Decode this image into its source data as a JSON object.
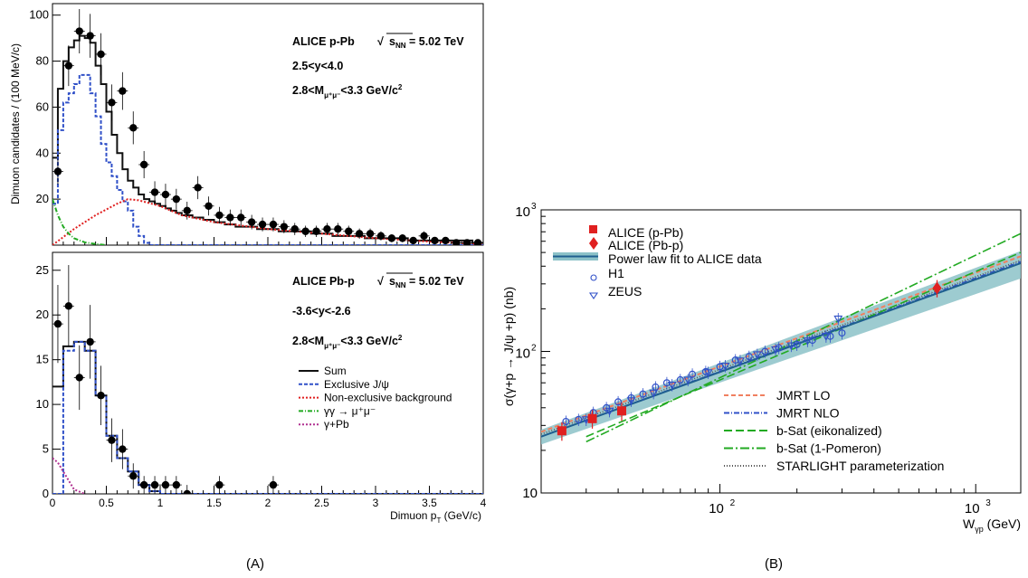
{
  "captions": {
    "a": "(A)",
    "b": "(B)"
  },
  "colors": {
    "sum": "#111111",
    "excl": "#3050c8",
    "nonexcl": "#e02020",
    "gg": "#22aa22",
    "gpb": "#b03090",
    "alice": "#e02020",
    "h1": "#3050c8",
    "band": "#8cc2c8",
    "fit": "#1f5f8f",
    "lo": "#f08060",
    "nlo": "#3050c8",
    "bsat_e": "#22aa22",
    "bsat_1": "#22aa22",
    "starlight": "#555555"
  },
  "chart_data": [
    {
      "id": "A-top",
      "type": "line",
      "annotations": [
        "ALICE p-Pb",
        "s",
        "NN",
        " = 5.02 TeV",
        "2.5<y<4.0",
        "2.8<M",
        "μ⁺μ⁻",
        "<3.3 GeV/c",
        "2"
      ],
      "ylabel": "Dimuon candidates / (100 MeV/c)",
      "xlim": [
        0,
        4
      ],
      "ylim": [
        0,
        105
      ],
      "yticks": [
        "20",
        "40",
        "60",
        "80",
        "100"
      ],
      "bin_edges": [
        0,
        0.05,
        0.1,
        0.15,
        0.2,
        0.25,
        0.3,
        0.35,
        0.4,
        0.45,
        0.5,
        0.55,
        0.6,
        0.65,
        0.7,
        0.75,
        0.8,
        0.85,
        0.9,
        0.95,
        1.0,
        1.05,
        1.1,
        1.15,
        1.2,
        1.3,
        1.4,
        1.5,
        1.6,
        1.7,
        1.8,
        1.9,
        2.0,
        2.1,
        2.2,
        2.3,
        2.4,
        2.5,
        2.6,
        2.7,
        2.8,
        2.9,
        3.0,
        3.1,
        3.2,
        3.3,
        3.4,
        3.5,
        3.6,
        3.7,
        3.8,
        3.9,
        4.0
      ],
      "series": [
        {
          "name": "Sum",
          "style": "solid",
          "values": [
            38,
            68,
            80,
            86,
            89,
            91,
            90,
            88,
            78,
            70,
            58,
            48,
            40,
            33,
            28,
            25,
            22,
            20,
            19,
            18,
            17,
            16,
            15,
            14,
            13,
            12,
            11,
            10,
            9,
            8,
            8,
            7,
            7,
            6,
            6,
            6,
            5,
            5,
            4,
            4,
            4,
            3,
            3,
            3,
            3,
            2,
            2,
            2,
            2,
            2,
            2,
            1
          ]
        },
        {
          "name": "Exclusive J/ψ",
          "style": "dashed",
          "values": [
            18,
            50,
            62,
            66,
            70,
            74,
            74,
            66,
            56,
            44,
            36,
            30,
            24,
            19,
            15,
            8,
            4,
            1,
            0,
            0,
            0,
            0,
            0,
            0,
            0,
            0,
            0,
            0,
            0,
            0,
            0,
            0,
            0,
            0,
            0,
            0,
            0,
            0,
            0,
            0,
            0,
            0,
            0,
            0,
            0,
            0,
            0,
            0,
            0,
            0,
            0,
            0
          ]
        },
        {
          "name": "Non-exclusive background",
          "style": "dotted",
          "x": [
            0.0,
            0.2,
            0.4,
            0.6,
            0.7,
            0.8,
            1.0,
            1.2,
            1.5,
            2.0,
            2.5,
            3.0,
            3.5,
            4.0
          ],
          "values": [
            0,
            7,
            13,
            18,
            20,
            19.5,
            17,
            13,
            10,
            7,
            5,
            3,
            1.5,
            0.5
          ]
        },
        {
          "name": "γγ → μ⁺μ⁻",
          "style": "dashdot",
          "x": [
            0.0,
            0.05,
            0.1,
            0.15,
            0.2,
            0.3,
            0.4,
            0.5
          ],
          "values": [
            20,
            13,
            8,
            5,
            3,
            1.2,
            0.5,
            0
          ]
        }
      ],
      "points": {
        "x": [
          0.05,
          0.15,
          0.25,
          0.35,
          0.45,
          0.55,
          0.65,
          0.75,
          0.85,
          0.95,
          1.05,
          1.15,
          1.25,
          1.35,
          1.45,
          1.55,
          1.65,
          1.75,
          1.85,
          1.95,
          2.05,
          2.15,
          2.25,
          2.35,
          2.45,
          2.55,
          2.65,
          2.75,
          2.85,
          2.95,
          3.05,
          3.15,
          3.25,
          3.35,
          3.45,
          3.55,
          3.65,
          3.75,
          3.85,
          3.95
        ],
        "y": [
          32,
          78,
          93,
          91,
          83,
          62,
          67,
          51,
          35,
          23,
          22,
          20,
          15,
          25,
          17,
          13,
          12,
          12,
          10,
          9,
          9,
          8,
          7,
          6,
          6,
          7,
          7,
          6,
          5,
          5,
          4,
          3,
          3,
          2,
          4,
          2,
          2,
          1,
          1,
          1
        ]
      }
    },
    {
      "id": "A-bottom",
      "type": "line",
      "annotations": [
        "ALICE Pb-p",
        "s",
        "NN",
        " = 5.02 TeV",
        "-3.6<y<-2.6",
        "2.8<M",
        "μ⁺μ⁻",
        "<3.3 GeV/c",
        "2"
      ],
      "xlabel": "Dimuon p",
      "xlabel_sub": "T",
      "xlabel_unit": " (GeV/c)",
      "xlim": [
        0,
        4
      ],
      "ylim": [
        0,
        27
      ],
      "xticks": [
        "0",
        "0.5",
        "1",
        "1.5",
        "2",
        "2.5",
        "3",
        "3.5",
        "4"
      ],
      "yticks": [
        "0",
        "5",
        "10",
        "15",
        "20",
        "25"
      ],
      "legend": [
        "Sum",
        "Exclusive J/ψ",
        "Non-exclusive background",
        "γγ → μ⁺μ⁻",
        "γ+Pb"
      ],
      "bin_edges": [
        0,
        0.1,
        0.2,
        0.3,
        0.4,
        0.5,
        0.6,
        0.7,
        0.8,
        0.9,
        1.0,
        4.0
      ],
      "series": [
        {
          "name": "Sum",
          "style": "solid",
          "values": [
            12,
            16.5,
            17,
            16,
            11,
            6.5,
            4,
            2.5,
            1,
            0.3,
            0
          ]
        },
        {
          "name": "Exclusive J/ψ",
          "style": "dashed",
          "values": [
            0,
            16,
            17,
            16,
            11,
            6.5,
            4,
            2.5,
            1,
            0.3,
            0
          ]
        },
        {
          "name": "γ+Pb",
          "style": "dotted",
          "x": [
            0.0,
            0.05,
            0.1,
            0.15,
            0.2,
            0.3
          ],
          "values": [
            4,
            3.5,
            2.5,
            1.5,
            0.5,
            0
          ]
        }
      ],
      "points": {
        "x": [
          0.05,
          0.15,
          0.25,
          0.35,
          0.45,
          0.55,
          0.65,
          0.75,
          0.85,
          0.95,
          1.05,
          1.15,
          1.25,
          1.55,
          2.05
        ],
        "y": [
          19,
          21,
          13,
          17,
          11,
          6,
          5,
          2,
          1,
          1,
          1,
          1,
          0,
          1,
          1
        ]
      }
    },
    {
      "id": "B",
      "type": "scatter",
      "ylabel": "σ(γ+p → J/ψ +p) (nb)",
      "xlabel": "W",
      "xlabel_sub": "γp",
      "xlabel_unit": " (GeV)",
      "log_x": true,
      "log_y": true,
      "xlim": [
        20,
        1500
      ],
      "ylim": [
        10,
        1000
      ],
      "xticks": [
        {
          "v": 100,
          "base": "10",
          "exp": "2"
        },
        {
          "v": 1000,
          "base": "10",
          "exp": "3"
        }
      ],
      "yticks": [
        {
          "v": 10,
          "label": "10"
        },
        {
          "v": 100,
          "base": "10",
          "exp": "2"
        },
        {
          "v": 1000,
          "base": "10",
          "exp": "3"
        }
      ],
      "legend_top": [
        "ALICE (p-Pb)",
        "ALICE (Pb-p)",
        "Power law fit to ALICE data",
        "H1",
        "ZEUS"
      ],
      "legend_bottom": [
        "JMRT LO",
        "JMRT NLO",
        "b-Sat (eikonalized)",
        "b-Sat (1-Pomeron)",
        "STARLIGHT parameterization"
      ],
      "alice_ppb": {
        "x": [
          24.1,
          31.7,
          41.3
        ],
        "y": [
          27.5,
          33.5,
          38
        ]
      },
      "alice_pbp": {
        "x": [
          706
        ],
        "y": [
          280
        ]
      },
      "h1": {
        "x": [
          25,
          28,
          32,
          36,
          40,
          45,
          50,
          56,
          62,
          70,
          78,
          88,
          100,
          115,
          130,
          150,
          170,
          200,
          230,
          270,
          300
        ],
        "y": [
          32,
          33,
          37,
          40,
          44,
          47,
          50,
          56,
          60,
          63,
          69,
          72,
          78,
          87,
          92,
          100,
          106,
          112,
          120,
          128,
          135
        ]
      },
      "zeus": {
        "x": [
          30,
          37,
          45,
          55,
          65,
          75,
          90,
          105,
          120,
          140,
          165,
          190,
          220,
          260,
          290
        ],
        "y": [
          33,
          38,
          45,
          51,
          58,
          63,
          71,
          79,
          86,
          95,
          103,
          110,
          119,
          128,
          170
        ]
      },
      "fit": {
        "x": [
          20,
          1500
        ],
        "y": [
          25,
          420
        ]
      },
      "lo": {
        "x": [
          20,
          1500
        ],
        "y": [
          27,
          470
        ]
      },
      "nlo": {
        "x": [
          20,
          1500
        ],
        "y": [
          25,
          430
        ]
      },
      "bsat_e": {
        "x": [
          30,
          1500
        ],
        "y": [
          25,
          500
        ]
      },
      "bsat_1": {
        "x": [
          30,
          1500
        ],
        "y": [
          23,
          680
        ]
      },
      "starlight": {
        "x": [
          20,
          1500
        ],
        "y": [
          26,
          440
        ]
      }
    }
  ]
}
